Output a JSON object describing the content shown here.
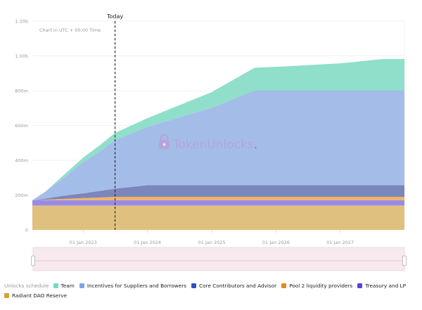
{
  "chart_data": {
    "type": "area",
    "stacked": true,
    "note": "Chart in UTC + 00:00 Time",
    "today_label": "Today",
    "watermark": "TokenUnlocks",
    "watermark_dot": ".",
    "x_ticks": [
      "01 Jan 2023",
      "01 Jan 2024",
      "01 Jan 2025",
      "01 Jan 2026",
      "01 Jan 2027"
    ],
    "y_ticks": [
      "0",
      "200m",
      "400m",
      "600m",
      "800m",
      "1.00b",
      "1.20b"
    ],
    "ylim": [
      0,
      1200000000
    ],
    "x": [
      "2022-03-18",
      "2022-06-01",
      "2022-09-01",
      "2023-01-01",
      "2023-04-01",
      "2023-07-01",
      "2024-01-01",
      "2025-01-01",
      "2025-09-01",
      "2026-01-01",
      "2027-01-01",
      "2027-09-01",
      "2028-01-01"
    ],
    "today": "2023-07-01",
    "legend_title": "Unlocks schedule",
    "series": [
      {
        "name": "Radiant DAO Reserve",
        "color": "#e0c07e",
        "values": [
          140000000,
          140000000,
          140000000,
          140000000,
          140000000,
          140000000,
          140000000,
          140000000,
          140000000,
          140000000,
          140000000,
          140000000,
          140000000
        ]
      },
      {
        "name": "Treasury and LP",
        "color": "#9a8ae8",
        "values": [
          30000000,
          30000000,
          30000000,
          30000000,
          30000000,
          30000000,
          30000000,
          30000000,
          30000000,
          30000000,
          30000000,
          30000000,
          30000000
        ]
      },
      {
        "name": "Pool 2 liquidity providers",
        "color": "#efb463",
        "values": [
          0,
          3000000,
          8000000,
          13000000,
          16000000,
          20000000,
          20000000,
          20000000,
          20000000,
          20000000,
          20000000,
          20000000,
          20000000
        ]
      },
      {
        "name": "Core Contributors and Advisor",
        "color": "#7b86bd",
        "values": [
          0,
          7000000,
          17000000,
          27000000,
          37000000,
          47000000,
          67000000,
          67000000,
          67000000,
          67000000,
          67000000,
          67000000,
          67000000
        ]
      },
      {
        "name": "Incentives for Suppliers and Borrowers",
        "color": "#a4bde8",
        "values": [
          0,
          40000000,
          95000000,
          180000000,
          225000000,
          280000000,
          335000000,
          445000000,
          545000000,
          545000000,
          545000000,
          545000000,
          545000000
        ]
      },
      {
        "name": "Team",
        "color": "#8fdfca",
        "values": [
          0,
          0,
          15000000,
          25000000,
          35000000,
          40000000,
          50000000,
          90000000,
          130000000,
          135000000,
          155000000,
          180000000,
          180000000
        ]
      }
    ]
  },
  "legend_items": [
    {
      "label": "Team",
      "color": "#6fdcc2"
    },
    {
      "label": "Incentives for Suppliers and Borrowers",
      "color": "#7fa4e6"
    },
    {
      "label": "Core Contributors and Advisor",
      "color": "#2f50c8"
    },
    {
      "label": "Pool 2 liquidity providers",
      "color": "#e38a23"
    },
    {
      "label": "Treasury and LP",
      "color": "#5a3fe3"
    },
    {
      "label": "Radiant DAO Reserve",
      "color": "#d4a334"
    }
  ]
}
